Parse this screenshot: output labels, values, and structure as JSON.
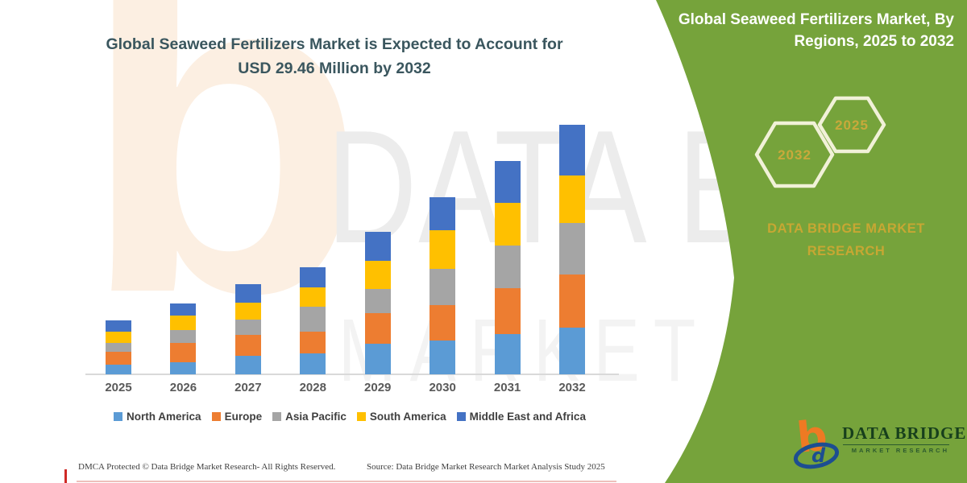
{
  "header": {
    "title_line1": "Global Seaweed Fertilizers Market is Expected to Account for",
    "title_line2": "USD 29.46 Million by 2032"
  },
  "side_panel": {
    "title_line1": "Global Seaweed Fertilizers Market, By",
    "title_line2": "Regions, 2025 to 2032",
    "hexagons": [
      {
        "label": "2032"
      },
      {
        "label": "2025"
      }
    ],
    "brand_line1": "DATA BRIDGE MARKET",
    "brand_line2": "RESEARCH",
    "panel_green": "#76a33b",
    "gold": "#c7a733",
    "hex_stroke": "#f1f1d8"
  },
  "logo": {
    "name": "DATA BRIDGE",
    "tagline": "MARKET RESEARCH",
    "mark_orange": "#ee7a23",
    "mark_blue": "#1d4e91"
  },
  "watermarks": {
    "letter": "b",
    "row1": "DATA BRI",
    "row2": "MARKET RE"
  },
  "footer": {
    "dmca": "DMCA Protected © Data Bridge Market Research-  All Rights Reserved.",
    "source": "Source: Data Bridge Market Research Market Analysis Study 2025"
  },
  "chart_data": {
    "type": "bar",
    "stacked": true,
    "title": "Global Seaweed Fertilizers Market is Expected to Account for USD 29.46 Million by 2032",
    "unit": "USD Million",
    "categories": [
      "2025",
      "2026",
      "2027",
      "2028",
      "2029",
      "2030",
      "2031",
      "2032"
    ],
    "series": [
      {
        "name": "North America",
        "color": "#5B9BD5",
        "values": [
          1.14,
          1.4,
          2.16,
          2.47,
          3.61,
          3.99,
          4.75,
          5.51
        ]
      },
      {
        "name": "Europe",
        "color": "#ED7D31",
        "values": [
          1.52,
          2.28,
          2.47,
          2.54,
          3.61,
          4.18,
          5.42,
          6.27
        ]
      },
      {
        "name": "Asia Pacific",
        "color": "#A5A5A5",
        "values": [
          1.05,
          1.59,
          1.81,
          3.01,
          2.85,
          4.28,
          5.04,
          6.08
        ]
      },
      {
        "name": "South America",
        "color": "#FFC000",
        "values": [
          1.33,
          1.64,
          2.06,
          2.22,
          3.33,
          4.56,
          5.04,
          5.61
        ]
      },
      {
        "name": "Middle East and Africa",
        "color": "#4472C4",
        "values": [
          1.33,
          1.43,
          2.16,
          2.44,
          3.42,
          3.9,
          4.94,
          5.99
        ]
      }
    ],
    "totals": [
      6.37,
      8.34,
      10.66,
      12.68,
      16.82,
      20.91,
      25.19,
      29.46
    ],
    "legend_position": "bottom",
    "gridlines": false,
    "y_axis_visible": false,
    "x_axis_line_color": "#d9d9d9"
  }
}
